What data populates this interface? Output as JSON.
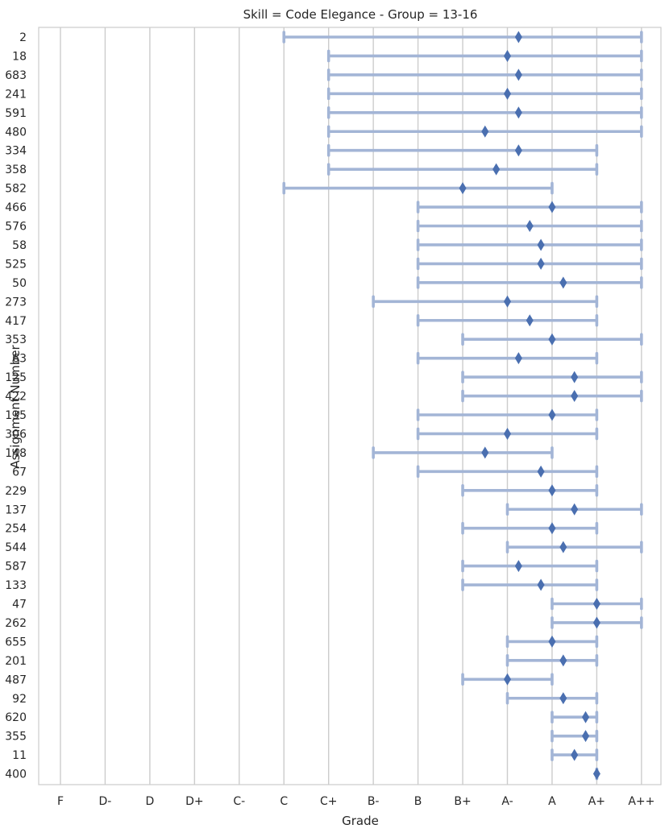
{
  "chart_data": {
    "type": "range-dot",
    "title": "Skill = Code Elegance - Group = 13-16",
    "xlabel": "Grade",
    "ylabel": "Assignment Number",
    "grades": [
      "F",
      "D-",
      "D",
      "D+",
      "C-",
      "C",
      "C+",
      "B-",
      "B",
      "B+",
      "A-",
      "A",
      "A+",
      "A++"
    ],
    "grid": "vertical",
    "colors": {
      "range": "#a3b5d6",
      "marker": "#4a6fb0",
      "grid": "#cccccc"
    },
    "rows": [
      {
        "label": "2",
        "low": "C",
        "high": "A++",
        "mean": 10.25
      },
      {
        "label": "18",
        "low": "C+",
        "high": "A++",
        "mean": 10.0
      },
      {
        "label": "683",
        "low": "C+",
        "high": "A++",
        "mean": 10.25
      },
      {
        "label": "241",
        "low": "C+",
        "high": "A++",
        "mean": 10.0
      },
      {
        "label": "591",
        "low": "C+",
        "high": "A++",
        "mean": 10.25
      },
      {
        "label": "480",
        "low": "C+",
        "high": "A++",
        "mean": 9.5
      },
      {
        "label": "334",
        "low": "C+",
        "high": "A+",
        "mean": 10.25
      },
      {
        "label": "358",
        "low": "C+",
        "high": "A+",
        "mean": 9.75
      },
      {
        "label": "582",
        "low": "C",
        "high": "A",
        "mean": 9.0
      },
      {
        "label": "466",
        "low": "B",
        "high": "A++",
        "mean": 11.0
      },
      {
        "label": "576",
        "low": "B",
        "high": "A++",
        "mean": 10.5
      },
      {
        "label": "58",
        "low": "B",
        "high": "A++",
        "mean": 10.75
      },
      {
        "label": "525",
        "low": "B",
        "high": "A++",
        "mean": 10.75
      },
      {
        "label": "50",
        "low": "B",
        "high": "A++",
        "mean": 11.25
      },
      {
        "label": "273",
        "low": "B-",
        "high": "A+",
        "mean": 10.0
      },
      {
        "label": "417",
        "low": "B",
        "high": "A+",
        "mean": 10.5
      },
      {
        "label": "353",
        "low": "B+",
        "high": "A++",
        "mean": 11.0
      },
      {
        "label": "63",
        "low": "B",
        "high": "A+",
        "mean": 10.25
      },
      {
        "label": "125",
        "low": "B+",
        "high": "A++",
        "mean": 11.5
      },
      {
        "label": "422",
        "low": "B+",
        "high": "A++",
        "mean": 11.5
      },
      {
        "label": "135",
        "low": "B",
        "high": "A+",
        "mean": 11.0
      },
      {
        "label": "306",
        "low": "B",
        "high": "A+",
        "mean": 10.0
      },
      {
        "label": "148",
        "low": "B-",
        "high": "A",
        "mean": 9.5
      },
      {
        "label": "67",
        "low": "B",
        "high": "A+",
        "mean": 10.75
      },
      {
        "label": "229",
        "low": "B+",
        "high": "A+",
        "mean": 11.0
      },
      {
        "label": "137",
        "low": "A-",
        "high": "A++",
        "mean": 11.5
      },
      {
        "label": "254",
        "low": "B+",
        "high": "A+",
        "mean": 11.0
      },
      {
        "label": "544",
        "low": "A-",
        "high": "A++",
        "mean": 11.25
      },
      {
        "label": "587",
        "low": "B+",
        "high": "A+",
        "mean": 10.25
      },
      {
        "label": "133",
        "low": "B+",
        "high": "A+",
        "mean": 10.75
      },
      {
        "label": "47",
        "low": "A",
        "high": "A++",
        "mean": 12.0
      },
      {
        "label": "262",
        "low": "A",
        "high": "A++",
        "mean": 12.0
      },
      {
        "label": "655",
        "low": "A-",
        "high": "A+",
        "mean": 11.0
      },
      {
        "label": "201",
        "low": "A-",
        "high": "A+",
        "mean": 11.25
      },
      {
        "label": "487",
        "low": "B+",
        "high": "A",
        "mean": 10.0
      },
      {
        "label": "92",
        "low": "A-",
        "high": "A+",
        "mean": 11.25
      },
      {
        "label": "620",
        "low": "A",
        "high": "A+",
        "mean": 11.75
      },
      {
        "label": "355",
        "low": "A",
        "high": "A+",
        "mean": 11.75
      },
      {
        "label": "11",
        "low": "A",
        "high": "A+",
        "mean": 11.5
      },
      {
        "label": "400",
        "low": "A+",
        "high": "A+",
        "mean": 12.0
      }
    ]
  }
}
